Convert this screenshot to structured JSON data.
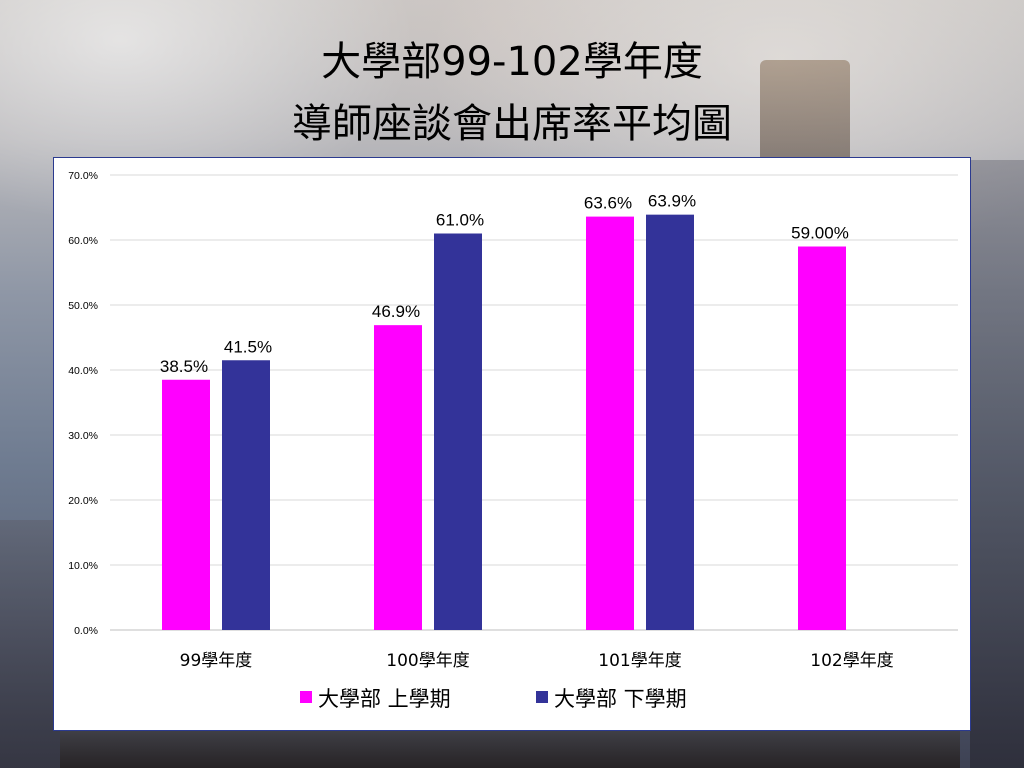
{
  "slide": {
    "title_line1": "大學部99-102學年度",
    "title_line2": "導師座談會出席率平均圖"
  },
  "chart_data": {
    "type": "bar",
    "categories": [
      "99學年度",
      "100學年度",
      "101學年度",
      "102學年度"
    ],
    "series": [
      {
        "name": "大學部 上學期",
        "color": "#ff00ff",
        "values": [
          38.5,
          46.9,
          63.6,
          59.0
        ],
        "labels": [
          "38.5%",
          "46.9%",
          "63.6%",
          "59.00%"
        ]
      },
      {
        "name": "大學部 下學期",
        "color": "#333399",
        "values": [
          41.5,
          61.0,
          63.9,
          null
        ],
        "labels": [
          "41.5%",
          "61.0%",
          "63.9%",
          null
        ]
      }
    ],
    "yticks": [
      "0.0%",
      "10.0%",
      "20.0%",
      "30.0%",
      "40.0%",
      "50.0%",
      "60.0%",
      "70.0%"
    ],
    "ylim": [
      0,
      70
    ],
    "grid": true,
    "legend_position": "bottom"
  }
}
